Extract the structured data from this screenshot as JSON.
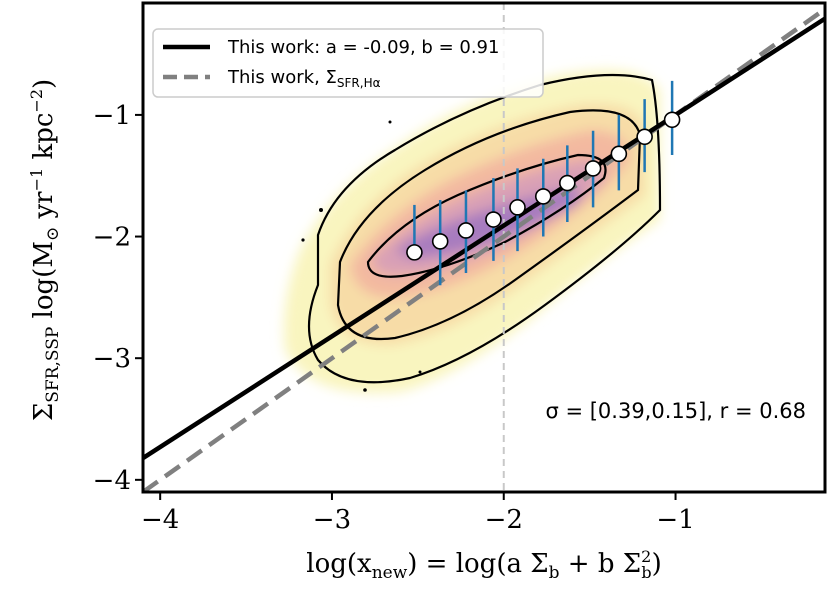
{
  "chart_data": {
    "type": "scatter",
    "x": [
      -2.52,
      -2.37,
      -2.22,
      -2.06,
      -1.92,
      -1.77,
      -1.63,
      -1.48,
      -1.33,
      -1.18,
      -1.02
    ],
    "y": [
      -2.13,
      -2.04,
      -1.95,
      -1.86,
      -1.76,
      -1.67,
      -1.56,
      -1.44,
      -1.32,
      -1.18,
      -1.04
    ],
    "error_low": [
      -2.12,
      -2.4,
      -2.3,
      -2.2,
      -2.12,
      -2.0,
      -1.88,
      -1.76,
      -1.62,
      -1.47,
      -1.33
    ],
    "error_high": [
      -1.74,
      -1.7,
      -1.62,
      -1.52,
      -1.44,
      -1.36,
      -1.25,
      -1.13,
      -1.0,
      -0.87,
      -0.72
    ],
    "xlim": [
      -4.1,
      -0.13
    ],
    "ylim": [
      -4.1,
      -0.08
    ],
    "xticks": [
      -4,
      -3,
      -2,
      -1
    ],
    "yticks": [
      -4,
      -3,
      -2,
      -1
    ],
    "xtick_labels": [
      "−4",
      "−3",
      "−2",
      "−1"
    ],
    "ytick_labels": [
      "−4",
      "−3",
      "−2",
      "−1"
    ],
    "xlabel": "log(x_new) = log(a Σ_b + b Σ_b^2)",
    "ylabel": "Σ_SFR,SSP log(M_⊙ yr^−1 kpc^−2)",
    "vertical_line_x": -2.0,
    "fit_line": {
      "a": -0.09,
      "b": 0.91,
      "label": "This work: a = -0.09, b = 0.91"
    },
    "halpha_line": {
      "slope": 1.0,
      "intercept": 0.0,
      "label": "This work, Σ_SFR,Hα"
    },
    "annotation": "σ = [0.39,0.15], r = 0.68",
    "legend_position": "top-left"
  },
  "labels": {
    "xlabel_main": "log(x",
    "xlabel_sub": "new",
    "xlabel_rest": ") = log(a Σ",
    "xlabel_sub2": "b",
    "xlabel_rest2": " + b Σ",
    "xlabel_sup3": "2",
    "xlabel_sub3": "b",
    "xlabel_end": ")",
    "ylabel_sigma": "Σ",
    "ylabel_sub": "SFR,SSP",
    "ylabel_log": " log(M",
    "ylabel_odot": "⊙",
    "ylabel_yr": " yr",
    "ylabel_sup1": "−1",
    "ylabel_kpc": " kpc",
    "ylabel_sup2": "−2",
    "ylabel_end": ")",
    "legend_fit": "This work: a = -0.09, b = 0.91",
    "legend_halpha_main": "This work, Σ",
    "legend_halpha_sub": "SFR,Hα",
    "annotation": "σ = [0.39,0.15], r = 0.68"
  },
  "colors": {
    "fit_line": "#000000",
    "halpha_line": "#808080",
    "error_bars": "#1f77b4",
    "points_fill": "#ffffff",
    "density_low": "#f8f3b4",
    "density_mid": "#f2b7a0",
    "density_high": "#a77bbf",
    "vline": "#c8c8c8"
  }
}
